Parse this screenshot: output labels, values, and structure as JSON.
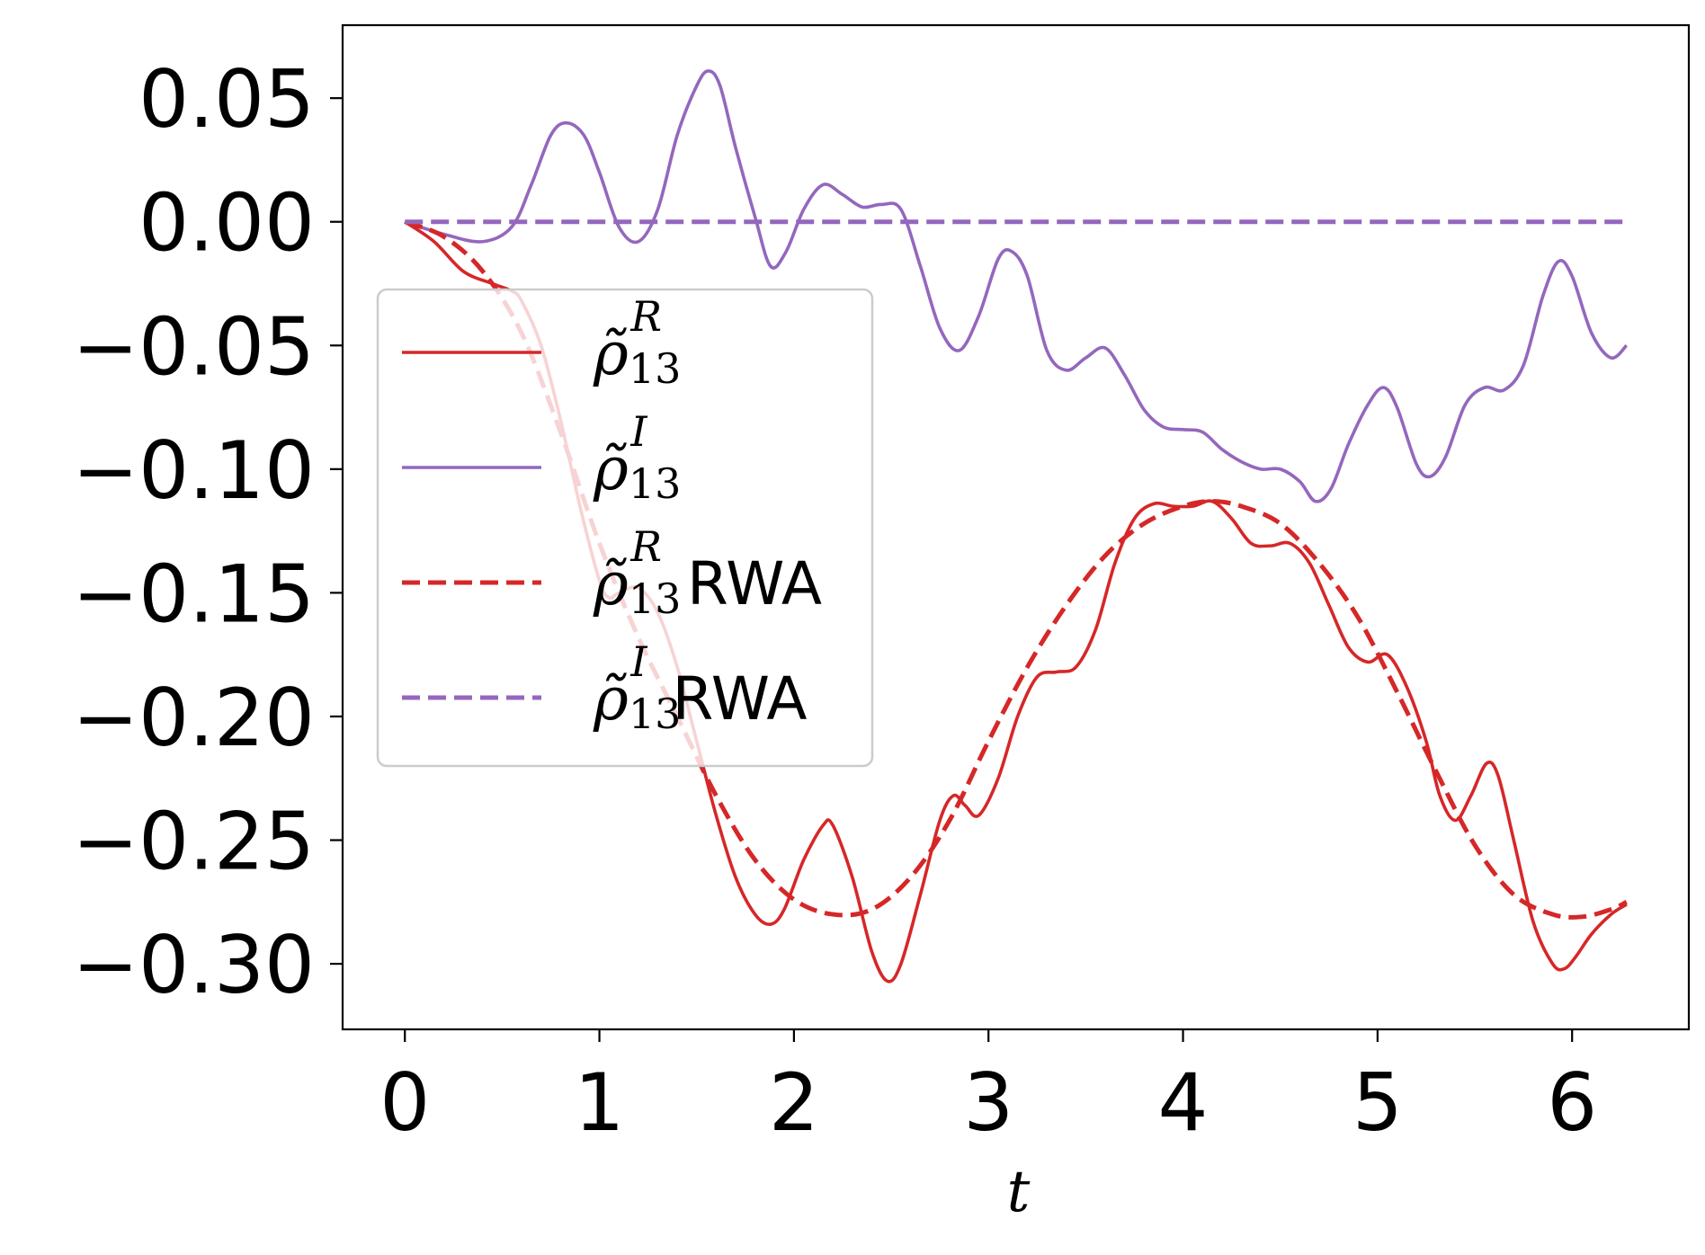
{
  "chart_data": {
    "type": "line",
    "xlabel": "t",
    "ylabel": "",
    "xlim": [
      -0.32,
      6.6
    ],
    "ylim": [
      -0.3265,
      0.0795
    ],
    "xticks": [
      0,
      1,
      2,
      3,
      4,
      5,
      6
    ],
    "xtick_labels": [
      "0",
      "1",
      "2",
      "3",
      "4",
      "5",
      "6"
    ],
    "yticks": [
      0.05,
      0.0,
      -0.05,
      -0.1,
      -0.15,
      -0.2,
      -0.25,
      -0.3
    ],
    "ytick_labels": [
      "0.05",
      "0.00",
      "−0.05",
      "−0.10",
      "−0.15",
      "−0.20",
      "−0.25",
      "−0.30"
    ],
    "grid": false,
    "legend": {
      "placement": "center-left"
    },
    "series": [
      {
        "name": "ρ̃13R",
        "legend_base": "ρ̃",
        "legend_sub": "13",
        "legend_sup": "R",
        "legend_suffix": "",
        "color": "#d62728",
        "style": "solid",
        "points": [
          [
            0,
            0
          ],
          [
            0.15,
            -0.008
          ],
          [
            0.3,
            -0.02
          ],
          [
            0.45,
            -0.025
          ],
          [
            0.55,
            -0.028
          ],
          [
            0.6,
            -0.032
          ],
          [
            0.7,
            -0.05
          ],
          [
            0.8,
            -0.08
          ],
          [
            0.9,
            -0.115
          ],
          [
            1.0,
            -0.145
          ],
          [
            1.05,
            -0.152
          ],
          [
            1.1,
            -0.15
          ],
          [
            1.2,
            -0.148
          ],
          [
            1.3,
            -0.158
          ],
          [
            1.4,
            -0.18
          ],
          [
            1.5,
            -0.21
          ],
          [
            1.6,
            -0.24
          ],
          [
            1.7,
            -0.265
          ],
          [
            1.8,
            -0.28
          ],
          [
            1.88,
            -0.284
          ],
          [
            1.95,
            -0.278
          ],
          [
            2.05,
            -0.258
          ],
          [
            2.15,
            -0.244
          ],
          [
            2.2,
            -0.244
          ],
          [
            2.3,
            -0.265
          ],
          [
            2.4,
            -0.295
          ],
          [
            2.48,
            -0.307
          ],
          [
            2.55,
            -0.3
          ],
          [
            2.65,
            -0.272
          ],
          [
            2.75,
            -0.242
          ],
          [
            2.82,
            -0.232
          ],
          [
            2.88,
            -0.236
          ],
          [
            2.95,
            -0.24
          ],
          [
            3.05,
            -0.225
          ],
          [
            3.15,
            -0.2
          ],
          [
            3.25,
            -0.184
          ],
          [
            3.35,
            -0.182
          ],
          [
            3.45,
            -0.18
          ],
          [
            3.55,
            -0.165
          ],
          [
            3.65,
            -0.138
          ],
          [
            3.75,
            -0.12
          ],
          [
            3.85,
            -0.114
          ],
          [
            3.95,
            -0.115
          ],
          [
            4.05,
            -0.115
          ],
          [
            4.15,
            -0.113
          ],
          [
            4.25,
            -0.12
          ],
          [
            4.35,
            -0.13
          ],
          [
            4.45,
            -0.131
          ],
          [
            4.55,
            -0.13
          ],
          [
            4.65,
            -0.138
          ],
          [
            4.75,
            -0.155
          ],
          [
            4.85,
            -0.172
          ],
          [
            4.95,
            -0.178
          ],
          [
            5.05,
            -0.175
          ],
          [
            5.15,
            -0.188
          ],
          [
            5.25,
            -0.21
          ],
          [
            5.32,
            -0.232
          ],
          [
            5.4,
            -0.242
          ],
          [
            5.48,
            -0.232
          ],
          [
            5.56,
            -0.219
          ],
          [
            5.62,
            -0.224
          ],
          [
            5.7,
            -0.25
          ],
          [
            5.8,
            -0.283
          ],
          [
            5.9,
            -0.3
          ],
          [
            5.96,
            -0.302
          ],
          [
            6.02,
            -0.297
          ],
          [
            6.1,
            -0.288
          ],
          [
            6.2,
            -0.28
          ],
          [
            6.28,
            -0.276
          ]
        ]
      },
      {
        "name": "ρ̃13I",
        "legend_base": "ρ̃",
        "legend_sub": "13",
        "legend_sup": "I",
        "legend_suffix": "",
        "color": "#9467bd",
        "style": "solid",
        "points": [
          [
            0,
            0
          ],
          [
            0.2,
            -0.005
          ],
          [
            0.4,
            -0.008
          ],
          [
            0.55,
            -0.002
          ],
          [
            0.65,
            0.015
          ],
          [
            0.75,
            0.035
          ],
          [
            0.83,
            0.04
          ],
          [
            0.92,
            0.035
          ],
          [
            1.0,
            0.02
          ],
          [
            1.1,
            -0.002
          ],
          [
            1.2,
            -0.008
          ],
          [
            1.3,
            0.005
          ],
          [
            1.4,
            0.035
          ],
          [
            1.5,
            0.055
          ],
          [
            1.56,
            0.061
          ],
          [
            1.62,
            0.055
          ],
          [
            1.7,
            0.03
          ],
          [
            1.8,
            0.002
          ],
          [
            1.88,
            -0.018
          ],
          [
            1.96,
            -0.012
          ],
          [
            2.05,
            0.005
          ],
          [
            2.15,
            0.015
          ],
          [
            2.25,
            0.011
          ],
          [
            2.35,
            0.006
          ],
          [
            2.45,
            0.007
          ],
          [
            2.55,
            0.005
          ],
          [
            2.65,
            -0.018
          ],
          [
            2.75,
            -0.043
          ],
          [
            2.85,
            -0.052
          ],
          [
            2.95,
            -0.038
          ],
          [
            3.05,
            -0.015
          ],
          [
            3.12,
            -0.012
          ],
          [
            3.2,
            -0.022
          ],
          [
            3.3,
            -0.052
          ],
          [
            3.4,
            -0.06
          ],
          [
            3.5,
            -0.055
          ],
          [
            3.6,
            -0.051
          ],
          [
            3.7,
            -0.062
          ],
          [
            3.8,
            -0.076
          ],
          [
            3.9,
            -0.083
          ],
          [
            4.0,
            -0.084
          ],
          [
            4.1,
            -0.085
          ],
          [
            4.2,
            -0.092
          ],
          [
            4.3,
            -0.097
          ],
          [
            4.4,
            -0.1
          ],
          [
            4.5,
            -0.1
          ],
          [
            4.6,
            -0.105
          ],
          [
            4.68,
            -0.113
          ],
          [
            4.76,
            -0.108
          ],
          [
            4.85,
            -0.09
          ],
          [
            4.95,
            -0.074
          ],
          [
            5.03,
            -0.067
          ],
          [
            5.1,
            -0.075
          ],
          [
            5.2,
            -0.098
          ],
          [
            5.27,
            -0.103
          ],
          [
            5.35,
            -0.095
          ],
          [
            5.45,
            -0.074
          ],
          [
            5.55,
            -0.067
          ],
          [
            5.65,
            -0.068
          ],
          [
            5.75,
            -0.058
          ],
          [
            5.85,
            -0.03
          ],
          [
            5.93,
            -0.016
          ],
          [
            6.0,
            -0.022
          ],
          [
            6.1,
            -0.045
          ],
          [
            6.2,
            -0.055
          ],
          [
            6.28,
            -0.05
          ]
        ]
      },
      {
        "name": "ρ̃13R RWA",
        "legend_base": "ρ̃",
        "legend_sub": "13",
        "legend_sup": "R",
        "legend_suffix": "RWA",
        "color": "#d62728",
        "style": "dashed",
        "points": [
          [
            0,
            0
          ],
          [
            0.2,
            -0.006
          ],
          [
            0.4,
            -0.02
          ],
          [
            0.6,
            -0.045
          ],
          [
            0.8,
            -0.085
          ],
          [
            1.0,
            -0.13
          ],
          [
            1.2,
            -0.168
          ],
          [
            1.4,
            -0.2
          ],
          [
            1.6,
            -0.232
          ],
          [
            1.8,
            -0.258
          ],
          [
            2.0,
            -0.274
          ],
          [
            2.2,
            -0.28
          ],
          [
            2.4,
            -0.278
          ],
          [
            2.6,
            -0.265
          ],
          [
            2.8,
            -0.242
          ],
          [
            3.0,
            -0.21
          ],
          [
            3.2,
            -0.18
          ],
          [
            3.4,
            -0.155
          ],
          [
            3.6,
            -0.135
          ],
          [
            3.8,
            -0.122
          ],
          [
            4.0,
            -0.115
          ],
          [
            4.15,
            -0.113
          ],
          [
            4.3,
            -0.115
          ],
          [
            4.5,
            -0.122
          ],
          [
            4.7,
            -0.138
          ],
          [
            4.9,
            -0.16
          ],
          [
            5.1,
            -0.19
          ],
          [
            5.3,
            -0.222
          ],
          [
            5.5,
            -0.252
          ],
          [
            5.7,
            -0.272
          ],
          [
            5.9,
            -0.28
          ],
          [
            6.05,
            -0.281
          ],
          [
            6.2,
            -0.278
          ],
          [
            6.28,
            -0.275
          ]
        ]
      },
      {
        "name": "ρ̃13I RWA",
        "legend_base": "ρ̃",
        "legend_sub": "13",
        "legend_sup": "I",
        "legend_suffix": "RWA",
        "color": "#9467bd",
        "style": "dashed",
        "points": [
          [
            0,
            0
          ],
          [
            6.28,
            0
          ]
        ]
      }
    ]
  }
}
